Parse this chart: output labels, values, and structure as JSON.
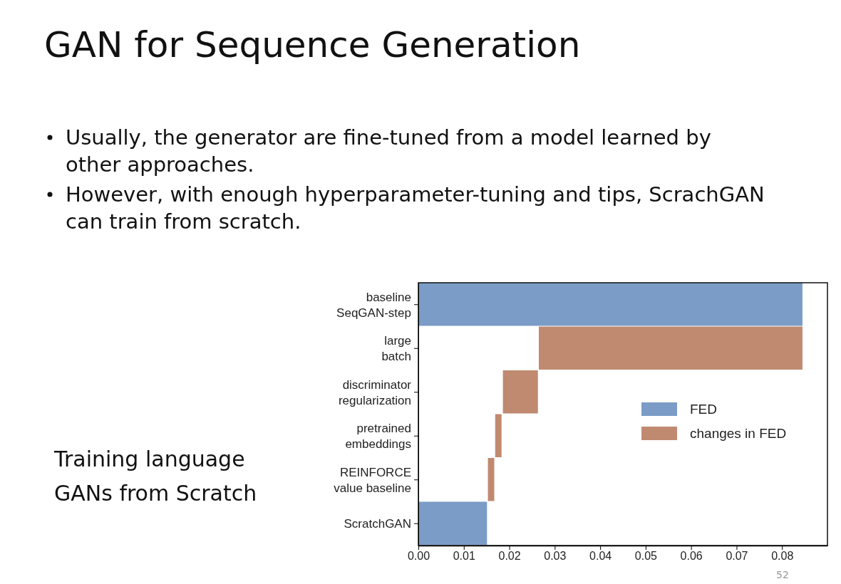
{
  "chart_data": {
    "type": "bar",
    "orientation": "horizontal",
    "title": "GAN for Sequence Generation",
    "annotations": [
      "Usually, the generator are fine-tuned from a model learned by other approaches.",
      "However, with enough hyperparameter-tuning and tips, ScrachGAN can train from scratch.",
      "Training language GANs from Scratch",
      "52"
    ],
    "categories": [
      "baseline\nSeqGAN-step",
      "large\nbatch",
      "discriminator\nregularization",
      "pretrained\nembeddings",
      "REINFORCE\nvalue baseline",
      "ScratchGAN"
    ],
    "series": [
      {
        "name": "FED",
        "color": "#7a9cc6",
        "values": [
          0.0845,
          null,
          null,
          null,
          null,
          0.0151
        ],
        "base": [
          0,
          null,
          null,
          null,
          null,
          0
        ]
      },
      {
        "name": "changes in FED",
        "color": "#c08a70",
        "values": [
          null,
          0.058,
          0.0077,
          0.0014,
          0.0014,
          null
        ],
        "base": [
          null,
          0.0265,
          0.0186,
          0.0169,
          0.0153,
          null
        ]
      }
    ],
    "xlim": [
      0,
      0.09
    ],
    "xticks": [
      {
        "value": 0,
        "label": "0.00"
      },
      {
        "value": 0.01,
        "label": "0.01"
      },
      {
        "value": 0.02,
        "label": "0.02"
      },
      {
        "value": 0.03,
        "label": "0.03"
      },
      {
        "value": 0.04,
        "label": "0.04"
      },
      {
        "value": 0.05,
        "label": "0.05"
      },
      {
        "value": 0.06,
        "label": "0.06"
      },
      {
        "value": 0.07,
        "label": "0.07"
      },
      {
        "value": 0.08,
        "label": "0.08"
      }
    ],
    "legend": "right"
  }
}
